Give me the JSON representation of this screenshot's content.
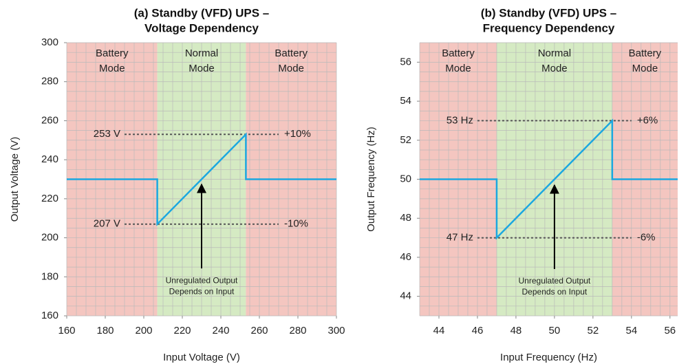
{
  "chart_data": [
    {
      "type": "line",
      "title": [
        "(a) Standby (VFD) UPS –",
        "Voltage Dependency"
      ],
      "x_label": "Input Voltage (V)",
      "y_label": "Output Voltage (V)",
      "xlim": [
        160,
        300
      ],
      "ylim": [
        160,
        300
      ],
      "xticks": [
        160,
        180,
        200,
        220,
        240,
        260,
        280,
        300
      ],
      "yticks": [
        160,
        180,
        200,
        220,
        240,
        260,
        280,
        300
      ],
      "grid": true,
      "minor_grid": 5,
      "regions": [
        {
          "label": [
            "Battery",
            "Mode"
          ],
          "range": [
            160,
            207
          ],
          "color": "#f4c6c0"
        },
        {
          "label": [
            "Normal",
            "Mode"
          ],
          "range": [
            207,
            253
          ],
          "color": "#d5eac3"
        },
        {
          "label": [
            "Battery",
            "Mode"
          ],
          "range": [
            253,
            300
          ],
          "color": "#f4c6c0"
        }
      ],
      "series": [
        {
          "color": "#1ba7e0",
          "x": [
            160,
            207,
            207,
            253,
            253,
            300
          ],
          "values": [
            230,
            230,
            207,
            253,
            230,
            230
          ]
        }
      ],
      "reference_lines": [
        {
          "value": 253,
          "label": "253 V",
          "right_label": "+10%",
          "span": [
            190,
            270
          ]
        },
        {
          "value": 207,
          "label": "207 V",
          "right_label": "-10%",
          "span": [
            190,
            270
          ]
        }
      ],
      "arrow": {
        "text": [
          "Unregulated Output",
          "Depends on Input"
        ],
        "x": 230,
        "y_from": 184.3,
        "y_to": 227.4
      }
    },
    {
      "type": "line",
      "title": [
        "(b) Standby (VFD) UPS –",
        "Frequency Dependency"
      ],
      "x_label": "Input Frequency (Hz)",
      "y_label": "Output Frequency (Hz)",
      "xlim": [
        43,
        56.4
      ],
      "ylim": [
        43,
        57
      ],
      "xticks": [
        44,
        46,
        48,
        50,
        52,
        54,
        56
      ],
      "yticks": [
        44,
        46,
        48,
        50,
        52,
        54,
        56
      ],
      "grid": true,
      "minor_grid": 0.5,
      "regions": [
        {
          "label": [
            "Battery",
            "Mode"
          ],
          "range": [
            43,
            47
          ],
          "color": "#f4c6c0"
        },
        {
          "label": [
            "Normal",
            "Mode"
          ],
          "range": [
            47,
            53
          ],
          "color": "#d5eac3"
        },
        {
          "label": [
            "Battery",
            "Mode"
          ],
          "range": [
            53,
            56.4
          ],
          "color": "#f4c6c0"
        }
      ],
      "series": [
        {
          "color": "#1ba7e0",
          "x": [
            43,
            47,
            47,
            53,
            53,
            56.4
          ],
          "values": [
            50,
            50,
            47,
            53,
            50,
            50
          ]
        }
      ],
      "reference_lines": [
        {
          "value": 53,
          "label": "53 Hz",
          "right_label": "+6%",
          "span": [
            46,
            54
          ]
        },
        {
          "value": 47,
          "label": "47 Hz",
          "right_label": "-6%",
          "span": [
            46,
            54
          ]
        }
      ],
      "arrow": {
        "text": [
          "Unregulated Output",
          "Depends on Input"
        ],
        "x": 50,
        "y_from": 45.4,
        "y_to": 49.7
      }
    }
  ]
}
